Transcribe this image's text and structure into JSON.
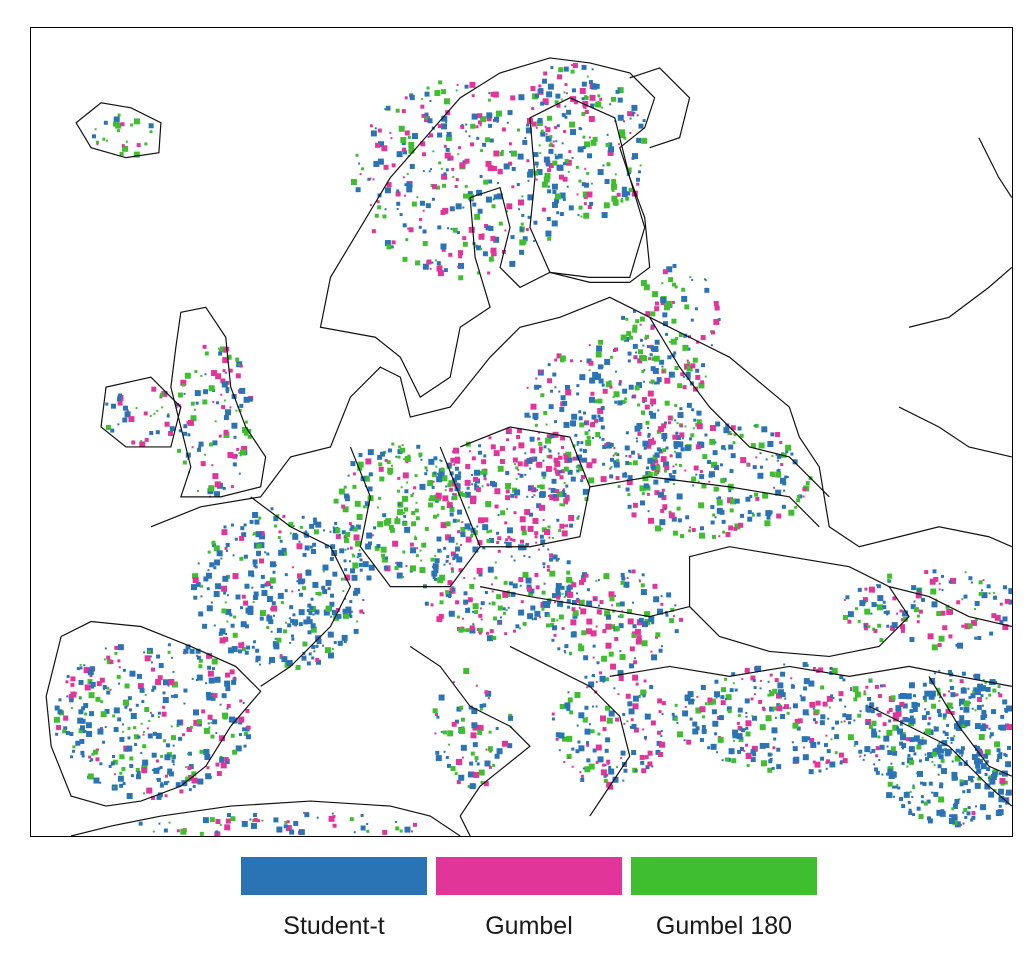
{
  "map": {
    "region": "Europe",
    "classes": [
      {
        "name": "Student-t",
        "color": "#2a74b5"
      },
      {
        "name": "Gumbel",
        "color": "#e1359a"
      },
      {
        "name": "Gumbel 180",
        "color": "#3fbf2f"
      }
    ]
  },
  "legend": {
    "items": [
      {
        "label": "Student-t",
        "color": "#2a74b5"
      },
      {
        "label": "Gumbel",
        "color": "#e1359a"
      },
      {
        "label": "Gumbel 180",
        "color": "#3fbf2f"
      }
    ]
  }
}
